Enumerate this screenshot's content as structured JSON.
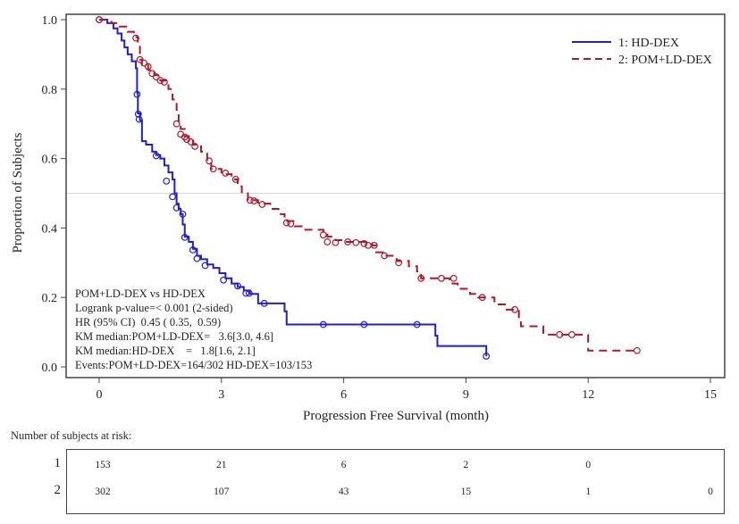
{
  "chart_data": {
    "type": "line",
    "subtype": "kaplan-meier",
    "title": "",
    "xlabel": "Progression Free Survival (month)",
    "ylabel": "Proportion of Subjects",
    "xlim": [
      0,
      15
    ],
    "ylim": [
      0,
      1.0
    ],
    "xticks": [
      "0",
      "3",
      "6",
      "9",
      "12",
      "15"
    ],
    "yticks": [
      "0.0",
      "0.2",
      "0.4",
      "0.6",
      "0.8",
      "1.0"
    ],
    "reference_line_y": 0.5,
    "grid": false,
    "legend_position": "top-right",
    "series": [
      {
        "name": "1: HD-DEX",
        "color": "#1f1fd0",
        "style": "solid",
        "steps": [
          [
            0,
            1.0
          ],
          [
            0.2,
            0.99
          ],
          [
            0.35,
            0.975
          ],
          [
            0.45,
            0.96
          ],
          [
            0.55,
            0.94
          ],
          [
            0.62,
            0.92
          ],
          [
            0.7,
            0.9
          ],
          [
            0.8,
            0.88
          ],
          [
            0.9,
            0.86
          ],
          [
            0.93,
            0.79
          ],
          [
            0.95,
            0.73
          ],
          [
            1.0,
            0.71
          ],
          [
            1.05,
            0.65
          ],
          [
            1.15,
            0.64
          ],
          [
            1.3,
            0.62
          ],
          [
            1.4,
            0.61
          ],
          [
            1.5,
            0.6
          ],
          [
            1.6,
            0.58
          ],
          [
            1.7,
            0.56
          ],
          [
            1.8,
            0.54
          ],
          [
            1.85,
            0.5
          ],
          [
            1.9,
            0.47
          ],
          [
            1.95,
            0.455
          ],
          [
            2.0,
            0.44
          ],
          [
            2.05,
            0.41
          ],
          [
            2.1,
            0.375
          ],
          [
            2.2,
            0.36
          ],
          [
            2.3,
            0.34
          ],
          [
            2.4,
            0.32
          ],
          [
            2.5,
            0.31
          ],
          [
            2.65,
            0.295
          ],
          [
            2.8,
            0.285
          ],
          [
            2.95,
            0.27
          ],
          [
            3.1,
            0.255
          ],
          [
            3.25,
            0.24
          ],
          [
            3.4,
            0.23
          ],
          [
            3.55,
            0.22
          ],
          [
            3.7,
            0.21
          ],
          [
            3.9,
            0.183
          ],
          [
            4.55,
            0.16
          ],
          [
            4.6,
            0.122
          ],
          [
            8.25,
            0.09
          ],
          [
            8.3,
            0.06
          ],
          [
            9.5,
            0.031
          ]
        ],
        "censored": [
          [
            0.0,
            1.0
          ],
          [
            0.93,
            0.785
          ],
          [
            0.96,
            0.728
          ],
          [
            0.98,
            0.713
          ],
          [
            1.4,
            0.608
          ],
          [
            1.65,
            0.535
          ],
          [
            1.8,
            0.49
          ],
          [
            1.9,
            0.458
          ],
          [
            2.05,
            0.44
          ],
          [
            2.1,
            0.373
          ],
          [
            2.3,
            0.337
          ],
          [
            2.4,
            0.312
          ],
          [
            2.6,
            0.292
          ],
          [
            3.05,
            0.25
          ],
          [
            3.4,
            0.233
          ],
          [
            3.6,
            0.212
          ],
          [
            3.68,
            0.212
          ],
          [
            4.05,
            0.183
          ],
          [
            5.5,
            0.122
          ],
          [
            6.5,
            0.122
          ],
          [
            7.8,
            0.122
          ],
          [
            9.5,
            0.031
          ]
        ]
      },
      {
        "name": "2: POM+LD-DEX",
        "color": "#b0182a",
        "style": "dashed",
        "steps": [
          [
            0,
            1.0
          ],
          [
            0.3,
            0.99
          ],
          [
            0.5,
            0.98
          ],
          [
            0.7,
            0.965
          ],
          [
            0.85,
            0.95
          ],
          [
            0.95,
            0.93
          ],
          [
            1.0,
            0.885
          ],
          [
            1.05,
            0.87
          ],
          [
            1.2,
            0.855
          ],
          [
            1.35,
            0.84
          ],
          [
            1.5,
            0.825
          ],
          [
            1.7,
            0.8
          ],
          [
            1.8,
            0.77
          ],
          [
            1.9,
            0.74
          ],
          [
            1.95,
            0.7
          ],
          [
            2.0,
            0.685
          ],
          [
            2.1,
            0.665
          ],
          [
            2.2,
            0.655
          ],
          [
            2.3,
            0.64
          ],
          [
            2.5,
            0.62
          ],
          [
            2.65,
            0.59
          ],
          [
            2.75,
            0.57
          ],
          [
            3.0,
            0.555
          ],
          [
            3.25,
            0.54
          ],
          [
            3.4,
            0.52
          ],
          [
            3.5,
            0.5
          ],
          [
            3.65,
            0.48
          ],
          [
            3.9,
            0.47
          ],
          [
            4.2,
            0.455
          ],
          [
            4.4,
            0.44
          ],
          [
            4.55,
            0.42
          ],
          [
            4.8,
            0.405
          ],
          [
            5.0,
            0.395
          ],
          [
            5.5,
            0.385
          ],
          [
            5.6,
            0.375
          ],
          [
            5.8,
            0.365
          ],
          [
            6.0,
            0.36
          ],
          [
            6.7,
            0.35
          ],
          [
            6.8,
            0.33
          ],
          [
            7.0,
            0.32
          ],
          [
            7.3,
            0.305
          ],
          [
            7.6,
            0.29
          ],
          [
            7.8,
            0.275
          ],
          [
            7.9,
            0.255
          ],
          [
            8.6,
            0.24
          ],
          [
            8.8,
            0.225
          ],
          [
            9.1,
            0.21
          ],
          [
            9.3,
            0.2
          ],
          [
            9.7,
            0.18
          ],
          [
            10.0,
            0.165
          ],
          [
            10.3,
            0.14
          ],
          [
            10.35,
            0.117
          ],
          [
            10.9,
            0.093
          ],
          [
            12.0,
            0.047
          ],
          [
            13.2,
            0.047
          ]
        ],
        "censored": [
          [
            0.0,
            1.0
          ],
          [
            0.9,
            0.947
          ],
          [
            1.0,
            0.885
          ],
          [
            1.1,
            0.875
          ],
          [
            1.2,
            0.865
          ],
          [
            1.3,
            0.845
          ],
          [
            1.4,
            0.835
          ],
          [
            1.5,
            0.825
          ],
          [
            1.6,
            0.82
          ],
          [
            1.9,
            0.7
          ],
          [
            2.0,
            0.67
          ],
          [
            2.1,
            0.662
          ],
          [
            2.15,
            0.655
          ],
          [
            2.25,
            0.648
          ],
          [
            2.35,
            0.635
          ],
          [
            2.7,
            0.593
          ],
          [
            2.8,
            0.57
          ],
          [
            3.1,
            0.558
          ],
          [
            3.35,
            0.54
          ],
          [
            3.7,
            0.48
          ],
          [
            3.8,
            0.478
          ],
          [
            4.0,
            0.468
          ],
          [
            4.6,
            0.415
          ],
          [
            4.7,
            0.412
          ],
          [
            5.5,
            0.38
          ],
          [
            5.6,
            0.36
          ],
          [
            5.8,
            0.358
          ],
          [
            6.1,
            0.36
          ],
          [
            6.3,
            0.358
          ],
          [
            6.5,
            0.355
          ],
          [
            6.6,
            0.35
          ],
          [
            6.75,
            0.35
          ],
          [
            7.0,
            0.32
          ],
          [
            7.35,
            0.3
          ],
          [
            7.9,
            0.255
          ],
          [
            8.4,
            0.255
          ],
          [
            8.7,
            0.255
          ],
          [
            9.4,
            0.2
          ],
          [
            10.2,
            0.165
          ],
          [
            11.3,
            0.093
          ],
          [
            11.6,
            0.093
          ],
          [
            13.2,
            0.047
          ]
        ]
      }
    ],
    "annotations": [
      "POM+LD-DEX vs HD-DEX",
      "Logrank p-value=< 0.001 (2-sided)",
      "HR (95% CI)  0.45 ( 0.35,  0.59)",
      "KM median:POM+LD-DEX=   3.6[3.0, 4.6]",
      "KM median:HD-DEX    =   1.8[1.6, 2.1]",
      "Events:POM+LD-DEX=164/302 HD-DEX=103/153"
    ]
  },
  "risk_table": {
    "title": "Number of subjects at risk:",
    "time_points": [
      0,
      3,
      6,
      9,
      12,
      15
    ],
    "rows": [
      {
        "group": "1",
        "values": [
          "153",
          "21",
          "6",
          "2",
          "0",
          ""
        ]
      },
      {
        "group": "2",
        "values": [
          "302",
          "107",
          "43",
          "15",
          "1",
          "0"
        ]
      }
    ]
  }
}
